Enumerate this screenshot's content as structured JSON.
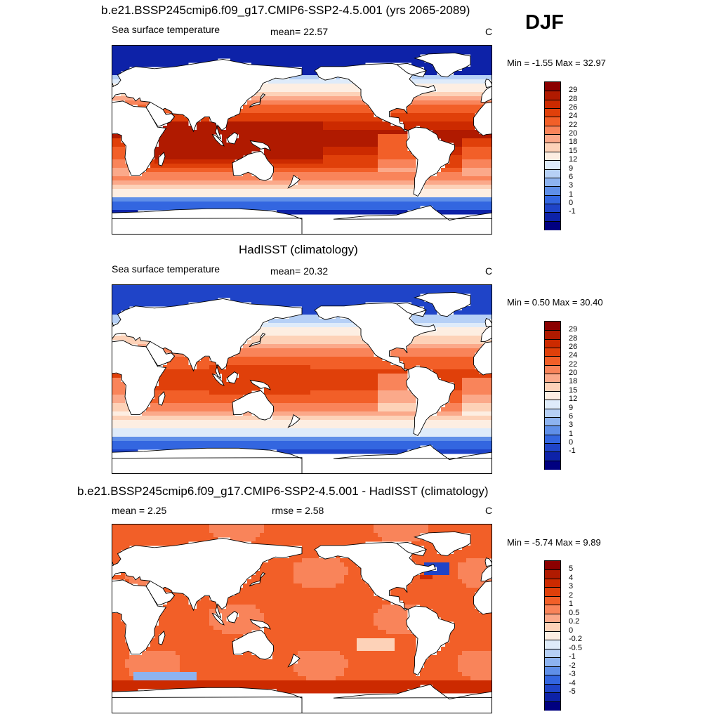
{
  "season": "DJF",
  "panels": [
    {
      "title": "b.e21.BSSP245cmip6.f09_g17.CMIP6-SSP2-4.5.001 (yrs 2065-2089)",
      "left_label": "Sea surface temperature",
      "center_label": "mean=  22.57",
      "units": "C",
      "minmax": "Min =  -1.55 Max =  32.97"
    },
    {
      "title": "HadISST (climatology)",
      "left_label": "Sea surface temperature",
      "center_label": "mean=  20.32",
      "units": "C",
      "minmax": "Min =   0.50 Max =  30.40"
    },
    {
      "title": "b.e21.BSSP245cmip6.f09_g17.CMIP6-SSP2-4.5.001 - HadISST (climatology)",
      "left_label": "mean =   2.25",
      "center_label": "rmse =   2.58",
      "units": "C",
      "minmax": "Min =  -5.74 Max =   9.89"
    }
  ],
  "colorbar_sst": {
    "labels": [
      "29",
      "28",
      "26",
      "24",
      "22",
      "20",
      "18",
      "15",
      "12",
      "9",
      "6",
      "3",
      "1",
      "0",
      "-1"
    ],
    "colors": [
      "#8b0000",
      "#b01a00",
      "#cc2a00",
      "#e0400a",
      "#f25f28",
      "#f9845a",
      "#fba98a",
      "#fdd2b8",
      "#fdeee2",
      "#deebfa",
      "#b6d0f6",
      "#8db3f0",
      "#5f8fe8",
      "#3366e0",
      "#1f44c8",
      "#0d22a8",
      "#000080"
    ]
  },
  "colorbar_diff": {
    "labels": [
      "5",
      "4",
      "3",
      "2",
      "1",
      "0.5",
      "0.2",
      "0",
      "-0.2",
      "-0.5",
      "-1",
      "-2",
      "-3",
      "-4",
      "-5"
    ],
    "colors": [
      "#8b0000",
      "#b01a00",
      "#cc2a00",
      "#e0400a",
      "#f25f28",
      "#f9845a",
      "#fba98a",
      "#fdd2b8",
      "#fdeee2",
      "#deebfa",
      "#b6d0f6",
      "#8db3f0",
      "#5f8fe8",
      "#3366e0",
      "#1f44c8",
      "#0d22a8",
      "#000080"
    ]
  },
  "field_colors": {
    "deep_red": "#8b0000",
    "dark_red": "#b01a00",
    "red": "#cc2a00",
    "red_orange": "#e0400a",
    "orange": "#f25f28",
    "salmon": "#f9845a",
    "light_salmon": "#fba98a",
    "peach": "#fdd2b8",
    "pale": "#fdeee2",
    "pale_blue": "#deebfa",
    "light_blue": "#b6d0f6",
    "sky_blue": "#8db3f0",
    "blue": "#5f8fe8",
    "mid_blue": "#3366e0",
    "deep_blue": "#1f44c8",
    "navy": "#0d22a8",
    "land": "#ffffff",
    "coast": "#000000"
  }
}
